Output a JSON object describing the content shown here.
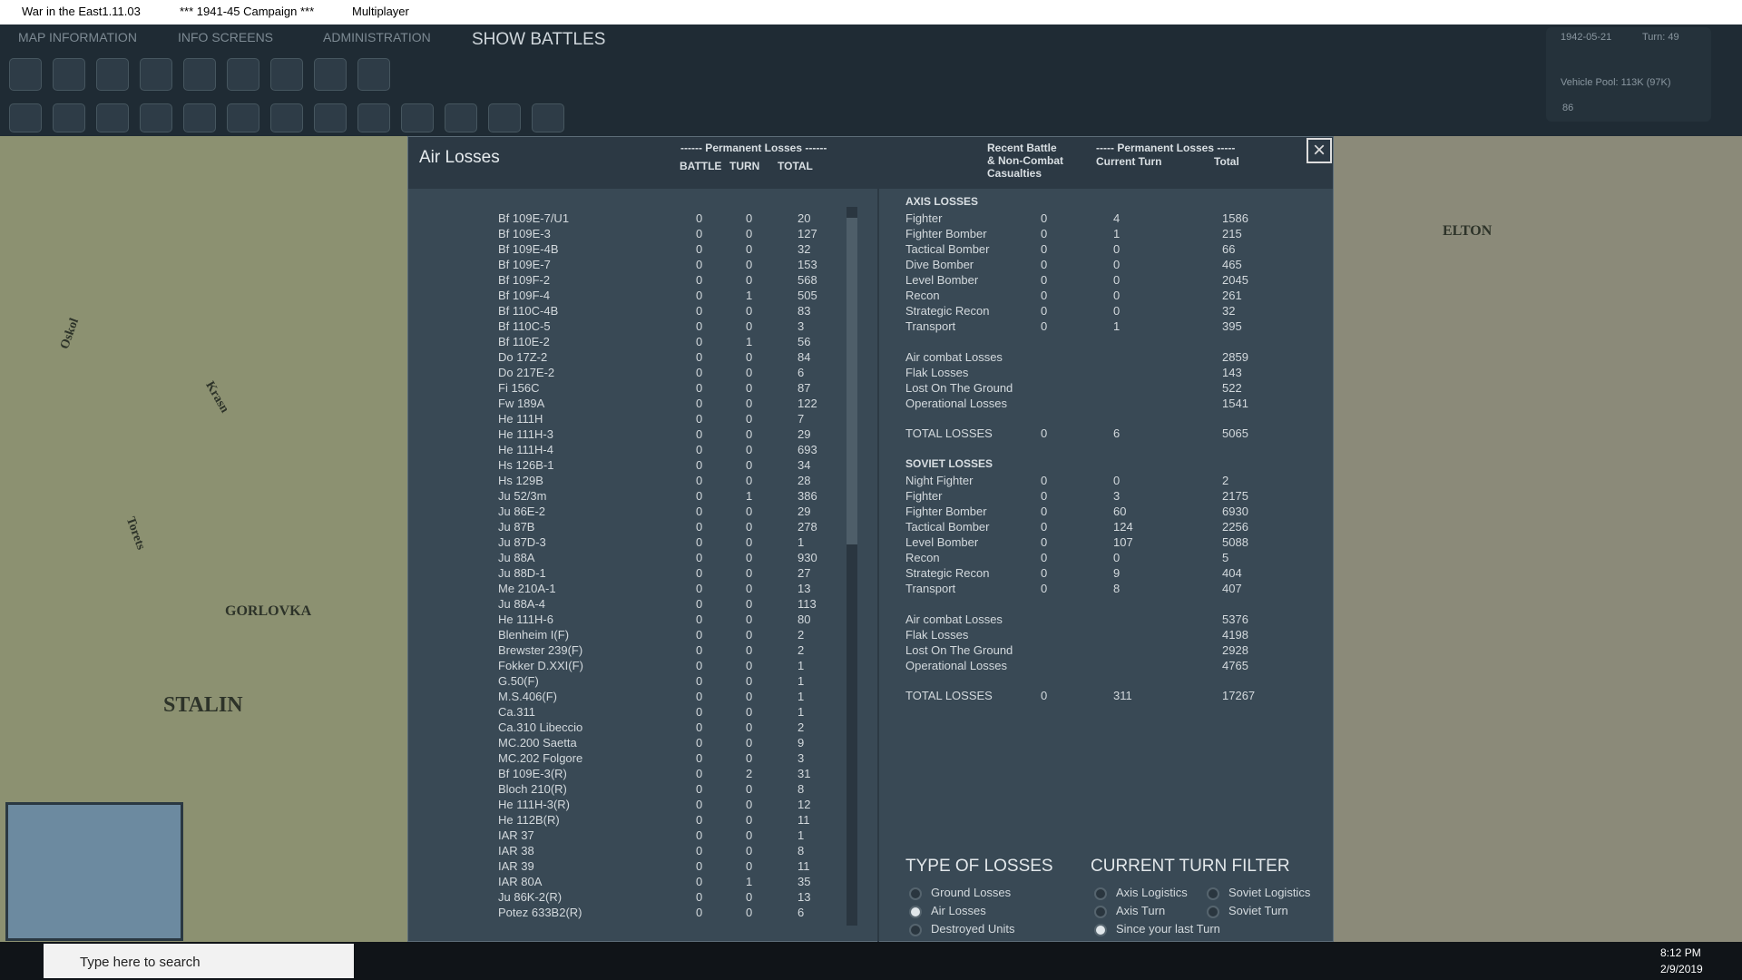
{
  "window": {
    "title": "War in the East1.11.03",
    "campaign": "***  1941-45 Campaign  ***",
    "mode": "Multiplayer"
  },
  "menu": [
    "MAP INFORMATION",
    "INFO SCREENS",
    "ADMINISTRATION",
    "SHOW BATTLES"
  ],
  "status": {
    "date": "1942-05-21",
    "turn": "Turn: 49",
    "vehicle_pool": "Vehicle Pool: 113K (97K)",
    "count": "86"
  },
  "map_labels": [
    "Oskol",
    "Krasn",
    "Torets",
    "GORLOVKA",
    "STALIN",
    "ELTON"
  ],
  "panel": {
    "title": "Air Losses",
    "left_group": "------ Permanent Losses ------",
    "left_columns": [
      "BATTLE",
      "TURN",
      "TOTAL"
    ],
    "right_recent": [
      "Recent Battle",
      "& Non-Combat",
      "Casualties"
    ],
    "right_group": "----- Permanent Losses -----",
    "right_columns": [
      "Current Turn",
      "Total"
    ],
    "aircraft": [
      [
        "Bf 109E-7/U1",
        0,
        0,
        20
      ],
      [
        "Bf 109E-3",
        0,
        0,
        127
      ],
      [
        "Bf 109E-4B",
        0,
        0,
        32
      ],
      [
        "Bf 109E-7",
        0,
        0,
        153
      ],
      [
        "Bf 109F-2",
        0,
        0,
        568
      ],
      [
        "Bf 109F-4",
        0,
        1,
        505
      ],
      [
        "Bf 110C-4B",
        0,
        0,
        83
      ],
      [
        "Bf 110C-5",
        0,
        0,
        3
      ],
      [
        "Bf 110E-2",
        0,
        1,
        56
      ],
      [
        "Do 17Z-2",
        0,
        0,
        84
      ],
      [
        "Do 217E-2",
        0,
        0,
        6
      ],
      [
        "Fi 156C",
        0,
        0,
        87
      ],
      [
        "Fw 189A",
        0,
        0,
        122
      ],
      [
        "He 111H",
        0,
        0,
        7
      ],
      [
        "He 111H-3",
        0,
        0,
        29
      ],
      [
        "He 111H-4",
        0,
        0,
        693
      ],
      [
        "Hs 126B-1",
        0,
        0,
        34
      ],
      [
        "Hs 129B",
        0,
        0,
        28
      ],
      [
        "Ju 52/3m",
        0,
        1,
        386
      ],
      [
        "Ju 86E-2",
        0,
        0,
        29
      ],
      [
        "Ju 87B",
        0,
        0,
        278
      ],
      [
        "Ju 87D-3",
        0,
        0,
        1
      ],
      [
        "Ju 88A",
        0,
        0,
        930
      ],
      [
        "Ju 88D-1",
        0,
        0,
        27
      ],
      [
        "Me 210A-1",
        0,
        0,
        13
      ],
      [
        "Ju 88A-4",
        0,
        0,
        113
      ],
      [
        "He 111H-6",
        0,
        0,
        80
      ],
      [
        "Blenheim I(F)",
        0,
        0,
        2
      ],
      [
        "Brewster 239(F)",
        0,
        0,
        2
      ],
      [
        "Fokker D.XXI(F)",
        0,
        0,
        1
      ],
      [
        "G.50(F)",
        0,
        0,
        1
      ],
      [
        "M.S.406(F)",
        0,
        0,
        1
      ],
      [
        "Ca.311",
        0,
        0,
        1
      ],
      [
        "Ca.310 Libeccio",
        0,
        0,
        2
      ],
      [
        "MC.200 Saetta",
        0,
        0,
        9
      ],
      [
        "MC.202 Folgore",
        0,
        0,
        3
      ],
      [
        "Bf 109E-3(R)",
        0,
        2,
        31
      ],
      [
        "Bloch 210(R)",
        0,
        0,
        8
      ],
      [
        "He 111H-3(R)",
        0,
        0,
        12
      ],
      [
        "He 112B(R)",
        0,
        0,
        11
      ],
      [
        "IAR 37",
        0,
        0,
        1
      ],
      [
        "IAR 38",
        0,
        0,
        8
      ],
      [
        "IAR 39",
        0,
        0,
        11
      ],
      [
        "IAR 80A",
        0,
        1,
        35
      ],
      [
        "Ju 86K-2(R)",
        0,
        0,
        13
      ],
      [
        "Potez 633B2(R)",
        0,
        0,
        6
      ]
    ],
    "sides": [
      {
        "heading": "AXIS LOSSES",
        "rows": [
          [
            "Fighter",
            0,
            4,
            1586
          ],
          [
            "Fighter Bomber",
            0,
            1,
            215
          ],
          [
            "Tactical Bomber",
            0,
            0,
            66
          ],
          [
            "Dive Bomber",
            0,
            0,
            465
          ],
          [
            "Level Bomber",
            0,
            0,
            2045
          ],
          [
            "Recon",
            0,
            0,
            261
          ],
          [
            "Strategic Recon",
            0,
            0,
            32
          ],
          [
            "Transport",
            0,
            1,
            395
          ]
        ],
        "summary": [
          [
            "Air combat Losses",
            2859
          ],
          [
            "Flak Losses",
            143
          ],
          [
            "Lost On The Ground",
            522
          ],
          [
            "Operational Losses",
            1541
          ]
        ],
        "total": [
          "TOTAL LOSSES",
          0,
          6,
          5065
        ]
      },
      {
        "heading": "SOVIET LOSSES",
        "rows": [
          [
            "Night Fighter",
            0,
            0,
            2
          ],
          [
            "Fighter",
            0,
            3,
            2175
          ],
          [
            "Fighter Bomber",
            0,
            60,
            6930
          ],
          [
            "Tactical Bomber",
            0,
            124,
            2256
          ],
          [
            "Level Bomber",
            0,
            107,
            5088
          ],
          [
            "Recon",
            0,
            0,
            5
          ],
          [
            "Strategic Recon",
            0,
            9,
            404
          ],
          [
            "Transport",
            0,
            8,
            407
          ]
        ],
        "summary": [
          [
            "Air combat Losses",
            5376
          ],
          [
            "Flak Losses",
            4198
          ],
          [
            "Lost On The Ground",
            2928
          ],
          [
            "Operational Losses",
            4765
          ]
        ],
        "total": [
          "TOTAL LOSSES",
          0,
          311,
          17267
        ]
      }
    ],
    "type_filter": {
      "title": "TYPE OF LOSSES",
      "options": [
        "Ground Losses",
        "Air Losses",
        "Destroyed Units"
      ],
      "selected": 1
    },
    "turn_filter": {
      "title": "CURRENT TURN FILTER",
      "options": [
        "Axis Logistics",
        "Soviet Logistics",
        "Axis Turn",
        "Soviet Turn",
        "Since your last Turn"
      ],
      "selected": 4
    }
  },
  "taskbar": {
    "search": "Type here to search",
    "time": "8:12 PM",
    "date": "2/9/2019"
  }
}
